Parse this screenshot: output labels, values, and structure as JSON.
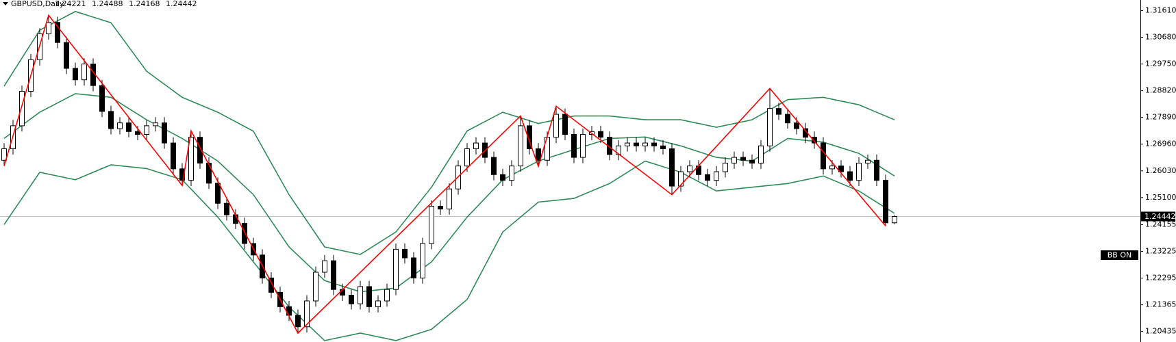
{
  "chart_data": {
    "type": "candlestick",
    "title": "GBPUSD,Daily",
    "header_ohlc": [
      1.24221,
      1.24488,
      1.24168,
      1.24442
    ],
    "open": [
      1.264,
      1.268,
      1.276,
      1.288,
      1.299,
      1.308,
      1.312,
      1.305,
      1.296,
      1.292,
      1.2975,
      1.29,
      1.281,
      1.275,
      1.277,
      1.274,
      1.273,
      1.276,
      1.277,
      1.27,
      1.261,
      1.257,
      1.272,
      1.263,
      1.256,
      1.249,
      1.245,
      1.242,
      1.235,
      1.231,
      1.223,
      1.218,
      1.213,
      1.21,
      1.206,
      1.215,
      1.225,
      1.229,
      1.219,
      1.217,
      1.214,
      1.22,
      1.213,
      1.215,
      1.219,
      1.233,
      1.23,
      1.223,
      1.235,
      1.248,
      1.247,
      1.254,
      1.262,
      1.268,
      1.27,
      1.265,
      1.259,
      1.257,
      1.262,
      1.276,
      1.268,
      1.264,
      1.272,
      1.28,
      1.273,
      1.265,
      1.273,
      1.274,
      1.272,
      1.266,
      1.269,
      1.27,
      1.269,
      1.27,
      1.269,
      1.268,
      1.255,
      1.26,
      1.262,
      1.259,
      1.257,
      1.26,
      1.263,
      1.265,
      1.264,
      1.263,
      1.269,
      1.282,
      1.28,
      1.277,
      1.275,
      1.272,
      1.27,
      1.261,
      1.262,
      1.26,
      1.257,
      1.263,
      1.264,
      1.257,
      1.2422
    ],
    "high": [
      1.27,
      1.278,
      1.29,
      1.301,
      1.31,
      1.3145,
      1.314,
      1.307,
      1.298,
      1.2995,
      1.2995,
      1.292,
      1.283,
      1.279,
      1.279,
      1.276,
      1.278,
      1.279,
      1.279,
      1.272,
      1.263,
      1.2742,
      1.274,
      1.265,
      1.258,
      1.251,
      1.247,
      1.244,
      1.237,
      1.233,
      1.225,
      1.22,
      1.215,
      1.212,
      1.217,
      1.227,
      1.231,
      1.231,
      1.221,
      1.219,
      1.222,
      1.222,
      1.217,
      1.221,
      1.235,
      1.235,
      1.232,
      1.237,
      1.25,
      1.25,
      1.256,
      1.264,
      1.27,
      1.272,
      1.272,
      1.267,
      1.261,
      1.264,
      1.2794,
      1.278,
      1.27,
      1.274,
      1.2828,
      1.282,
      1.275,
      1.275,
      1.276,
      1.276,
      1.274,
      1.271,
      1.272,
      1.272,
      1.272,
      1.272,
      1.271,
      1.27,
      1.262,
      1.264,
      1.264,
      1.261,
      1.262,
      1.265,
      1.267,
      1.267,
      1.266,
      1.271,
      1.289,
      1.284,
      1.282,
      1.279,
      1.277,
      1.274,
      1.272,
      1.264,
      1.264,
      1.262,
      1.265,
      1.266,
      1.266,
      1.259,
      1.2449
    ],
    "low": [
      1.262,
      1.266,
      1.274,
      1.286,
      1.297,
      1.306,
      1.303,
      1.294,
      1.29,
      1.29,
      1.288,
      1.279,
      1.273,
      1.273,
      1.272,
      1.271,
      1.271,
      1.274,
      1.268,
      1.259,
      1.2552,
      1.255,
      1.261,
      1.254,
      1.247,
      1.243,
      1.24,
      1.233,
      1.229,
      1.221,
      1.216,
      1.211,
      1.208,
      1.2038,
      1.204,
      1.213,
      1.223,
      1.217,
      1.215,
      1.212,
      1.212,
      1.211,
      1.211,
      1.213,
      1.217,
      1.228,
      1.221,
      1.221,
      1.233,
      1.245,
      1.245,
      1.252,
      1.26,
      1.266,
      1.263,
      1.257,
      1.255,
      1.255,
      1.26,
      1.266,
      1.2619,
      1.262,
      1.27,
      1.271,
      1.263,
      1.263,
      1.271,
      1.27,
      1.264,
      1.264,
      1.267,
      1.267,
      1.267,
      1.267,
      1.266,
      1.252,
      1.253,
      1.258,
      1.257,
      1.255,
      1.255,
      1.258,
      1.261,
      1.262,
      1.261,
      1.261,
      1.267,
      1.278,
      1.275,
      1.273,
      1.27,
      1.268,
      1.259,
      1.259,
      1.258,
      1.255,
      1.255,
      1.261,
      1.255,
      1.2411,
      1.2417
    ],
    "close": [
      1.268,
      1.276,
      1.288,
      1.299,
      1.308,
      1.312,
      1.305,
      1.296,
      1.292,
      1.2975,
      1.29,
      1.281,
      1.275,
      1.277,
      1.274,
      1.273,
      1.276,
      1.277,
      1.27,
      1.261,
      1.257,
      1.272,
      1.263,
      1.256,
      1.249,
      1.245,
      1.242,
      1.235,
      1.231,
      1.223,
      1.218,
      1.213,
      1.21,
      1.206,
      1.215,
      1.225,
      1.229,
      1.219,
      1.217,
      1.214,
      1.22,
      1.213,
      1.215,
      1.219,
      1.233,
      1.23,
      1.223,
      1.235,
      1.248,
      1.247,
      1.254,
      1.262,
      1.268,
      1.27,
      1.265,
      1.259,
      1.257,
      1.262,
      1.276,
      1.268,
      1.264,
      1.272,
      1.28,
      1.273,
      1.265,
      1.273,
      1.274,
      1.272,
      1.266,
      1.269,
      1.27,
      1.269,
      1.27,
      1.269,
      1.268,
      1.255,
      1.26,
      1.262,
      1.259,
      1.257,
      1.26,
      1.263,
      1.265,
      1.264,
      1.263,
      1.269,
      1.282,
      1.28,
      1.277,
      1.275,
      1.272,
      1.27,
      1.261,
      1.262,
      1.26,
      1.257,
      1.263,
      1.264,
      1.257,
      1.2422,
      1.2444
    ],
    "bands": {
      "color": "#2e8b57",
      "index": [
        0,
        4,
        8,
        12,
        16,
        20,
        24,
        28,
        32,
        36,
        40,
        44,
        48,
        52,
        56,
        60,
        64,
        68,
        72,
        76,
        80,
        84,
        88,
        92,
        96,
        100
      ],
      "upper": [
        1.2898,
        1.3093,
        1.3158,
        1.3119,
        1.295,
        1.2859,
        1.2807,
        1.2741,
        1.252,
        1.2338,
        1.2312,
        1.239,
        1.2546,
        1.2742,
        1.2807,
        1.2768,
        1.2794,
        1.2794,
        1.2781,
        1.2781,
        1.2755,
        1.2781,
        1.2851,
        1.2859,
        1.2833,
        1.2781
      ],
      "middle": [
        1.2716,
        1.2807,
        1.2872,
        1.2859,
        1.2781,
        1.2716,
        1.2637,
        1.252,
        1.2338,
        1.2221,
        1.2182,
        1.2195,
        1.2286,
        1.2442,
        1.2572,
        1.2637,
        1.2677,
        1.2716,
        1.2721,
        1.269,
        1.265,
        1.2637,
        1.2716,
        1.2703,
        1.2664,
        1.2585
      ],
      "lower": [
        1.2416,
        1.2598,
        1.2572,
        1.2624,
        1.2611,
        1.2572,
        1.2442,
        1.2286,
        1.2129,
        1.2012,
        1.2038,
        1.2012,
        1.2051,
        1.2155,
        1.239,
        1.2494,
        1.2507,
        1.2559,
        1.2637,
        1.2598,
        1.2533,
        1.2546,
        1.2559,
        1.2585,
        1.2533,
        1.2455
      ]
    },
    "zigzag": {
      "color": "#ff0000",
      "index": [
        0,
        5,
        20,
        21,
        33,
        58,
        60,
        62,
        75,
        86,
        99
      ],
      "values": [
        1.262,
        1.3145,
        1.2552,
        1.2742,
        1.2038,
        1.2794,
        1.2619,
        1.2828,
        1.252,
        1.289,
        1.2411
      ]
    },
    "price_line": 1.24442,
    "annotation": "BB ON",
    "ylim": [
      1.2007,
      1.3198
    ],
    "yticks": [
      {
        "value": 1.3161,
        "label": "1.31610"
      },
      {
        "value": 1.3068,
        "label": "1.30680"
      },
      {
        "value": 1.2975,
        "label": "1.29750"
      },
      {
        "value": 1.2882,
        "label": "1.28820"
      },
      {
        "value": 1.2789,
        "label": "1.27890"
      },
      {
        "value": 1.2696,
        "label": "1.26960"
      },
      {
        "value": 1.2603,
        "label": "1.26030"
      },
      {
        "value": 1.251,
        "label": "1.25100"
      },
      1.24155,
      1.23225,
      1.22295,
      1.21365,
      1.20435
    ]
  }
}
